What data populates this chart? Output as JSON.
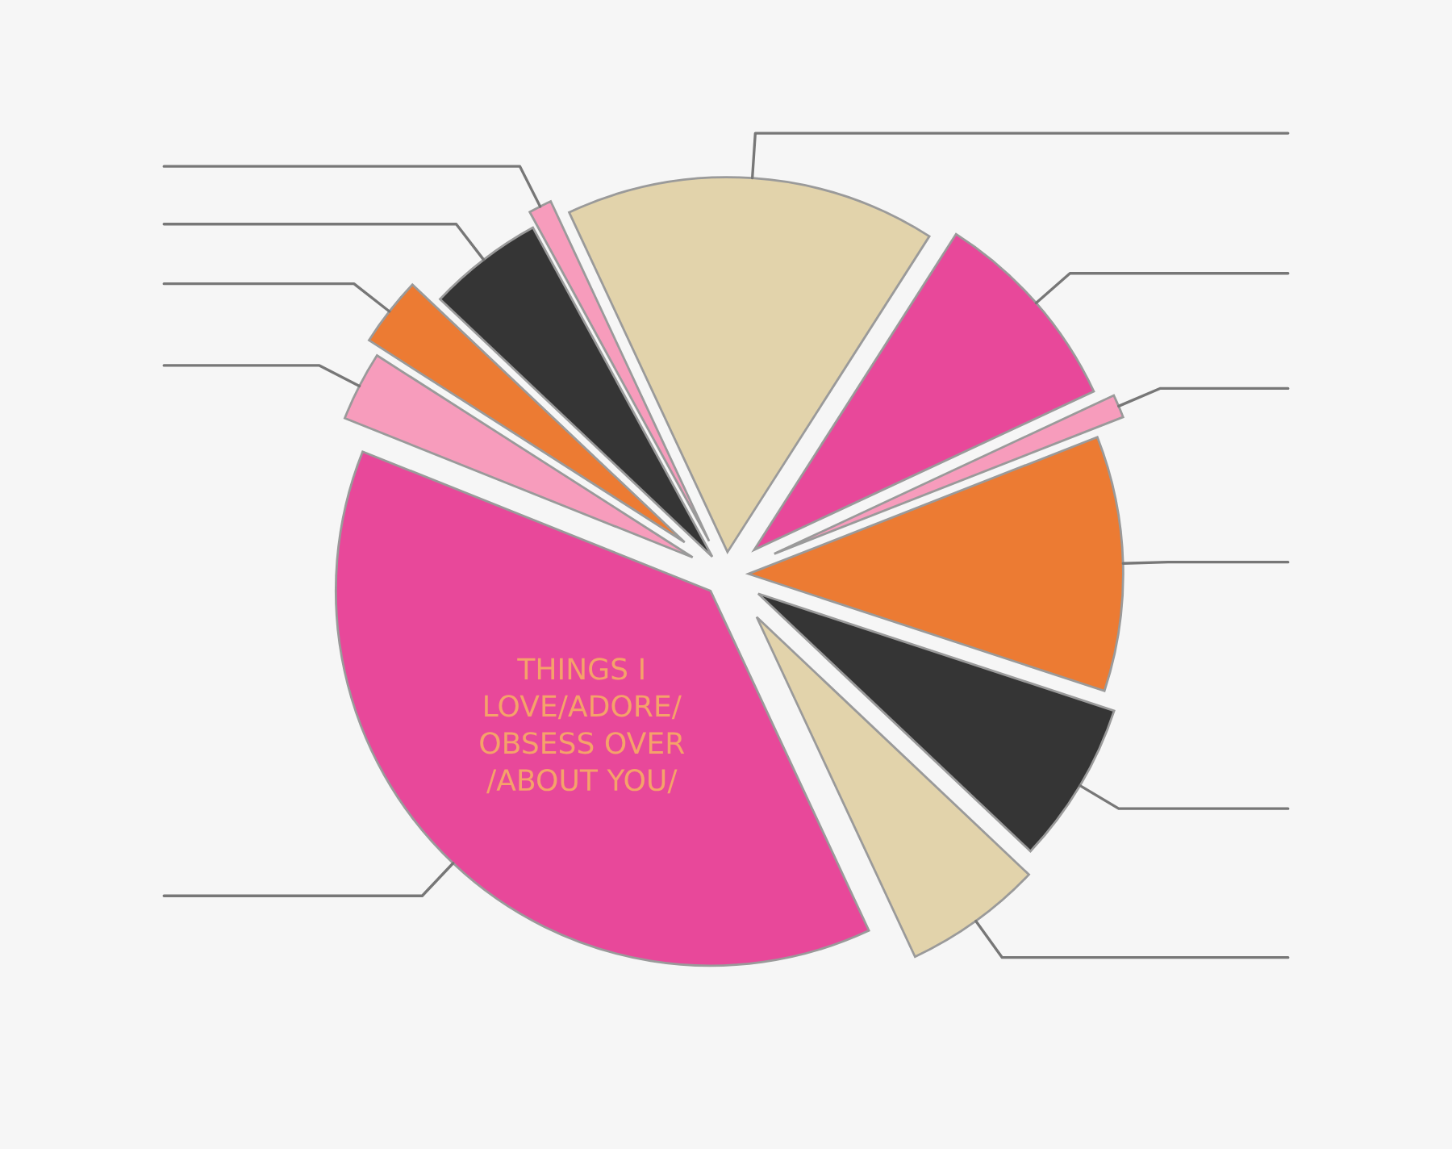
{
  "chart_data": {
    "type": "pie",
    "categories": [
      null,
      null,
      null,
      null,
      null,
      null,
      null,
      null,
      null,
      null,
      null
    ],
    "values": [
      16,
      9,
      1,
      11,
      7,
      6,
      38,
      3,
      3,
      5,
      1
    ],
    "colors": [
      "#e2d3ab",
      "#e8489a",
      "#f79cbc",
      "#ec7b33",
      "#353535",
      "#e2d3ab",
      "#e8489a",
      "#f79cbc",
      "#ec7b33",
      "#353535",
      "#f79cbc"
    ],
    "annotations": [
      "THINGS I\nLOVE/ADORE/\nOBSESS OVER\n/ABOUT YOU/"
    ],
    "legend": false
  }
}
